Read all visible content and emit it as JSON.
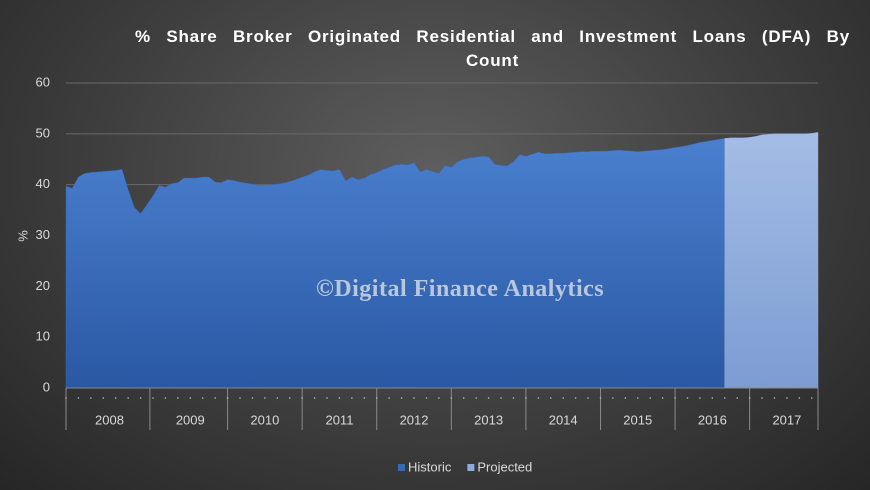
{
  "chart_data": {
    "type": "area",
    "title": "% Share Broker Originated Residential and Investment Loans (DFA) By Count",
    "watermark": "©Digital Finance Analytics",
    "ylabel": "%",
    "categories": [
      null,
      null,
      null,
      null,
      null,
      null,
      null,
      "2008",
      null,
      null,
      null,
      null,
      null,
      null,
      null,
      null,
      null,
      null,
      null,
      null,
      "2009",
      null,
      null,
      null,
      null,
      null,
      null,
      null,
      null,
      null,
      null,
      null,
      "2010",
      null,
      null,
      null,
      null,
      null,
      null,
      null,
      null,
      null,
      null,
      null,
      "2011",
      null,
      null,
      null,
      null,
      null,
      null,
      null,
      null,
      null,
      null,
      null,
      "2012",
      null,
      null,
      null,
      null,
      null,
      null,
      null,
      null,
      null,
      null,
      null,
      "2013",
      null,
      null,
      null,
      null,
      null,
      null,
      null,
      null,
      null,
      null,
      null,
      "2014",
      null,
      null,
      null,
      null,
      null,
      null,
      null,
      null,
      null,
      null,
      null,
      "2015",
      null,
      null,
      null,
      null,
      null,
      null,
      null,
      null,
      null,
      null,
      null,
      "2016",
      null,
      null,
      null,
      null,
      null,
      null,
      null,
      null,
      null,
      null,
      null,
      "2017",
      null,
      null,
      null,
      null,
      null
    ],
    "series": [
      {
        "name": "Historic",
        "color": "#3568b8",
        "values": [
          39.7,
          39.3,
          41.5,
          42.2,
          42.4,
          42.5,
          42.6,
          42.7,
          42.8,
          43.0,
          39,
          35.5,
          34.3,
          36,
          37.8,
          39.8,
          39.5,
          40.2,
          40.4,
          41.3,
          41.3,
          41.3,
          41.5,
          41.5,
          40.5,
          40.4,
          41,
          40.8,
          40.5,
          40.3,
          40.1,
          39.9,
          39.9,
          40,
          40.1,
          40.3,
          40.6,
          41,
          41.5,
          41.9,
          42.5,
          43,
          42.8,
          42.7,
          43,
          40.8,
          41.5,
          41,
          41.3,
          42,
          42.4,
          43,
          43.4,
          43.9,
          44,
          43.9,
          44.3,
          42.5,
          43,
          42.6,
          42.2,
          43.8,
          43.4,
          44.5,
          45,
          45.3,
          45.4,
          45.6,
          45.5,
          44,
          43.8,
          43.7,
          44.5,
          45.9,
          45.6,
          46,
          46.4,
          46.1,
          46.1,
          46.2,
          46.2,
          46.3,
          46.4,
          46.5,
          46.5,
          46.6,
          46.6,
          46.6,
          46.7,
          46.8,
          46.7,
          46.6,
          46.5,
          46.6,
          46.7,
          46.8,
          46.9,
          47.1,
          47.3,
          47.5,
          47.7,
          48,
          48.3,
          48.5,
          48.7,
          48.9,
          49.1,
          null,
          null,
          null,
          null,
          null,
          null,
          null,
          null,
          null,
          null,
          null,
          null,
          null,
          null,
          null
        ]
      },
      {
        "name": "Projected",
        "color": "#8eaadb",
        "values": [
          null,
          null,
          null,
          null,
          null,
          null,
          null,
          null,
          null,
          null,
          null,
          null,
          null,
          null,
          null,
          null,
          null,
          null,
          null,
          null,
          null,
          null,
          null,
          null,
          null,
          null,
          null,
          null,
          null,
          null,
          null,
          null,
          null,
          null,
          null,
          null,
          null,
          null,
          null,
          null,
          null,
          null,
          null,
          null,
          null,
          null,
          null,
          null,
          null,
          null,
          null,
          null,
          null,
          null,
          null,
          null,
          null,
          null,
          null,
          null,
          null,
          null,
          null,
          null,
          null,
          null,
          null,
          null,
          null,
          null,
          null,
          null,
          null,
          null,
          null,
          null,
          null,
          null,
          null,
          null,
          null,
          null,
          null,
          null,
          null,
          null,
          null,
          null,
          null,
          null,
          null,
          null,
          null,
          null,
          null,
          null,
          null,
          null,
          null,
          null,
          null,
          null,
          null,
          null,
          null,
          null,
          49.1,
          49.2,
          49.2,
          49.2,
          49.3,
          49.5,
          49.8,
          49.9,
          50,
          50,
          50,
          50,
          50,
          50,
          50.1,
          50.3
        ]
      }
    ],
    "ylim": [
      0,
      60
    ],
    "yticks": [
      0,
      10,
      20,
      30,
      40,
      50,
      60
    ],
    "grid": true,
    "legend": "bottom"
  }
}
